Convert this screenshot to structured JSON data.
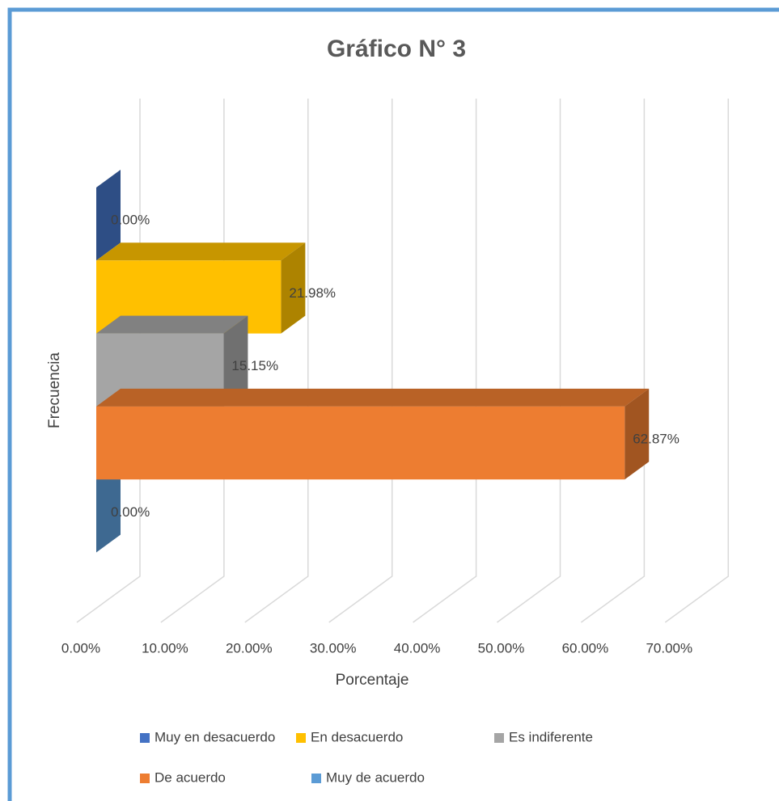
{
  "chart_data": {
    "type": "bar",
    "orientation": "horizontal",
    "three_d": true,
    "title": "Gráfico N° 3",
    "x_label": "Porcentaje",
    "y_label": "Frecuencia",
    "xlim": [
      0,
      70
    ],
    "xticks": [
      {
        "value": 0,
        "label": "0.00%"
      },
      {
        "value": 10,
        "label": "10.00%"
      },
      {
        "value": 20,
        "label": "20.00%"
      },
      {
        "value": 30,
        "label": "30.00%"
      },
      {
        "value": 40,
        "label": "40.00%"
      },
      {
        "value": 50,
        "label": "50.00%"
      },
      {
        "value": 60,
        "label": "60.00%"
      },
      {
        "value": 70,
        "label": "70.00%"
      }
    ],
    "grid": true,
    "legend": "bottom",
    "series": [
      {
        "name": "Muy en desacuerdo",
        "color": "#4472c4",
        "values": [
          0
        ],
        "value_labels": [
          "0.00%"
        ]
      },
      {
        "name": "En desacuerdo",
        "color": "#ffc000",
        "values": [
          21.98
        ],
        "value_labels": [
          "21.98%"
        ]
      },
      {
        "name": "Es indiferente",
        "color": "#a5a5a5",
        "values": [
          15.15
        ],
        "value_labels": [
          "15.15%"
        ]
      },
      {
        "name": "De acuerdo",
        "color": "#ed7d31",
        "values": [
          62.87
        ],
        "value_labels": [
          "62.87%"
        ]
      },
      {
        "name": "Muy de acuerdo",
        "color": "#5b9bd5",
        "values": [
          0
        ],
        "value_labels": [
          "0.00%"
        ]
      }
    ]
  }
}
